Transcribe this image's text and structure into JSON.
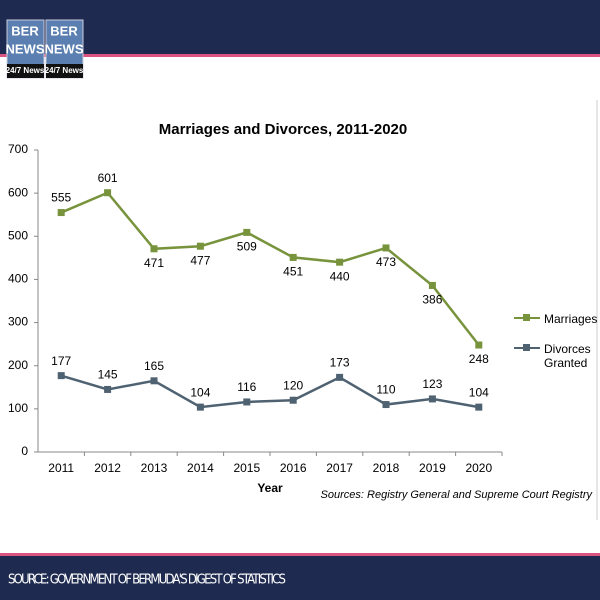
{
  "header": {
    "logo": [
      "BER",
      "NEWS",
      "BER",
      "NEWS"
    ],
    "tagline": [
      "24/7 News",
      "24/7 News"
    ]
  },
  "footer": {
    "source": "SOURCE: GOVERNMENT OF BERMUDA'S DIGEST OF STATISTICS"
  },
  "chart_data": {
    "type": "line",
    "title": "Marriages and Divorces, 2011-2020",
    "x_label": "Year",
    "note": "Sources:  Registry General and Supreme Court Registry",
    "categories": [
      "2011",
      "2012",
      "2013",
      "2014",
      "2015",
      "2016",
      "2017",
      "2018",
      "2019",
      "2020"
    ],
    "series": [
      {
        "name": "Marriages",
        "color": "#77933c",
        "values": [
          555,
          601,
          471,
          477,
          509,
          451,
          440,
          473,
          386,
          248
        ]
      },
      {
        "name": "Divorces Granted",
        "color": "#4f6272",
        "values": [
          177,
          145,
          165,
          104,
          116,
          120,
          173,
          110,
          123,
          104
        ]
      }
    ],
    "ylim": [
      0,
      700
    ],
    "yticks": [
      0,
      100,
      200,
      300,
      400,
      500,
      600,
      700
    ],
    "legend": "right"
  }
}
